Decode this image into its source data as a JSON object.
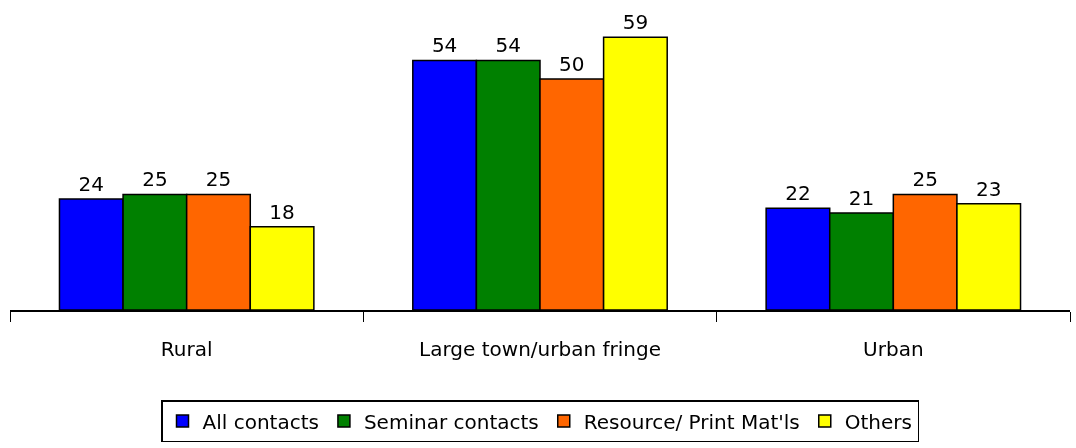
{
  "chart_data": {
    "type": "bar",
    "categories": [
      "Rural",
      "Large town/urban fringe",
      "Urban"
    ],
    "series": [
      {
        "name": "All contacts",
        "color": "#0000ff",
        "values": [
          24,
          54,
          22
        ]
      },
      {
        "name": "Seminar contacts",
        "color": "#008000",
        "values": [
          25,
          54,
          21
        ]
      },
      {
        "name": "Resource/ Print Mat'ls",
        "color": "#ff6600",
        "values": [
          25,
          50,
          25
        ]
      },
      {
        "name": "Others",
        "color": "#ffff00",
        "values": [
          18,
          59,
          23
        ]
      }
    ],
    "data_labels": true,
    "legend": "bottom"
  }
}
